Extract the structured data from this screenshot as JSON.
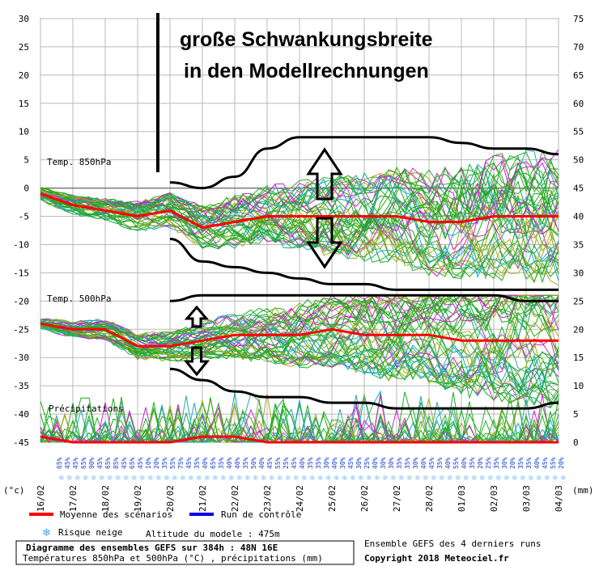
{
  "annotation": {
    "line1": "große Schwankungsbreite",
    "line2": "in den Modellrechnungen"
  },
  "panels": {
    "t850": "Temp. 850hPa",
    "t500": "Temp. 500hPa",
    "precip": "Précipitations"
  },
  "units": {
    "left": "(°c)",
    "right": "(mm)"
  },
  "legend": {
    "mean": "Moyenne des scénarios",
    "control": "Run de contrôle",
    "snow": "Risque neige",
    "altitude": "Altitude du modele : 475m",
    "ensemble_note": "Ensemble GEFS des 4 derniers runs",
    "copyright": "Copyright 2018 Meteociel.fr",
    "info_title": "Diagramme des ensembles GEFS sur 384h : 48N 16E",
    "info_sub": "Températures 850hPa et 500hPa (°C) , précipitations (mm)"
  },
  "snow_risk_percent": [
    "65%",
    "45%",
    "45%",
    "65%",
    "90%",
    "45%",
    "65%",
    "85%",
    "45%",
    "65%",
    "45%",
    "10%",
    "20%",
    "35%",
    "55%",
    "75%",
    "45%",
    "35%",
    "40%",
    "65%",
    "35%",
    "40%",
    "40%",
    "35%",
    "50%",
    "40%",
    "45%",
    "55%",
    "25%",
    "45%",
    "40%",
    "35%",
    "35%",
    "30%",
    "40%",
    "30%",
    "45%",
    "30%",
    "25%",
    "40%",
    "30%",
    "30%",
    "35%",
    "35%",
    "30%",
    "40%",
    "45%",
    "35%",
    "40%",
    "55%",
    "40%",
    "35%",
    "20%",
    "25%",
    "35%",
    "30%",
    "20%",
    "35%",
    "35%",
    "40%",
    "45%",
    "55%",
    "20%"
  ],
  "colors": {
    "mean": "#ff0000",
    "control": "#0000ee",
    "member_green": "#22aa22",
    "member_olive": "#a8a820",
    "member_magenta": "#cc22cc",
    "member_cyan": "#1fa8b8",
    "pct_text": "#1a3fd0",
    "snow_icon": "#8ec8ff"
  },
  "chart_data": {
    "type": "line",
    "x": [
      "16/02",
      "17/02",
      "18/02",
      "19/02",
      "20/02",
      "21/02",
      "22/02",
      "23/02",
      "24/02",
      "25/02",
      "26/02",
      "27/02",
      "28/02",
      "01/03",
      "02/03",
      "03/03",
      "04/03"
    ],
    "y_left_ticks": [
      30,
      25,
      20,
      15,
      10,
      5,
      0,
      -5,
      -10,
      -15,
      -20,
      -25,
      -30,
      -35,
      -40,
      -45
    ],
    "y_right_ticks": [
      75,
      70,
      65,
      60,
      55,
      50,
      45,
      40,
      35,
      30,
      25,
      20,
      15,
      10,
      5,
      0
    ],
    "y_left_range": [
      -45,
      30
    ],
    "y_right_range": [
      0,
      75
    ],
    "grid": true,
    "series": [
      {
        "name": "Moyenne des scénarios",
        "panel": "Temp. 850hPa",
        "values": [
          -1,
          -3,
          -4,
          -5,
          -4,
          -7,
          -6,
          -5,
          -5,
          -5,
          -5,
          -5,
          -6,
          -6,
          -5,
          -5,
          -5
        ]
      },
      {
        "name": "Moyenne des scénarios",
        "panel": "Temp. 500hPa",
        "values": [
          -24,
          -25,
          -25,
          -28,
          -28,
          -27,
          -26,
          -26,
          -26,
          -25,
          -26,
          -26,
          -26,
          -27,
          -27,
          -27,
          -27
        ]
      },
      {
        "name": "Moyenne des scénarios",
        "panel": "Précipitations",
        "values": [
          -44,
          -45,
          -45,
          -45,
          -45,
          -44,
          -44,
          -45,
          -45,
          -45,
          -45,
          -45,
          -45,
          -45,
          -45,
          -45,
          -45
        ]
      }
    ],
    "envelope_850": {
      "upper": [
        null,
        null,
        null,
        null,
        1,
        0,
        2,
        7,
        9,
        9,
        9,
        9,
        9,
        8,
        7,
        7,
        6
      ],
      "lower": [
        null,
        null,
        null,
        null,
        -9,
        -13,
        -14,
        -15,
        -16,
        -17,
        -17,
        -18,
        -18,
        -18,
        -18,
        -18,
        -18
      ]
    },
    "envelope_500": {
      "upper": [
        null,
        null,
        null,
        null,
        -20,
        -19,
        -19,
        -19,
        -19,
        -19,
        -19,
        -19,
        -19,
        -19,
        -19,
        -20,
        -20
      ],
      "lower": [
        null,
        null,
        null,
        null,
        -32,
        -34,
        -36,
        -37,
        -37,
        -38,
        -38,
        -39,
        -39,
        -39,
        -39,
        -39,
        -38
      ]
    }
  }
}
